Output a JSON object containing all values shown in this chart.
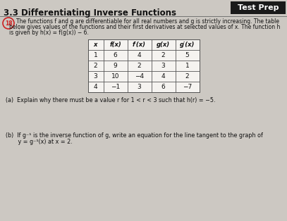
{
  "title": "3.3 Differentiating Inverse Functions",
  "badge": "Test Prep",
  "problem_number": "18",
  "intro_line1": "The functions f and g are differentiable for all real numbers and g is strictly increasing. The table",
  "intro_line2": "below gives values of the functions and their first derivatives at selected values of x. The function h",
  "intro_line3": "is given by h(x) = f(g(x)) − 6.",
  "table_headers": [
    "x",
    "f(x)",
    "f′(x)",
    "g(x)",
    "g′(x)"
  ],
  "table_data": [
    [
      "1",
      "6",
      "4",
      "2",
      "5"
    ],
    [
      "2",
      "9",
      "2",
      "3",
      "1"
    ],
    [
      "3",
      "10",
      "−4",
      "4",
      "2"
    ],
    [
      "4",
      "−1",
      "3",
      "6",
      "−7"
    ]
  ],
  "part_a": "(a)  Explain why there must be a value r for 1 < r < 3 such that h(r) = −5.",
  "part_b1": "(b)  If g⁻¹ is the inverse function of g, write an equation for the line tangent to the graph of",
  "part_b2": "       y = g⁻¹(x) at x = 2.",
  "bg_color": "#ccc8c2",
  "table_bg": "#f5f3f0",
  "badge_bg": "#1a1a1a",
  "badge_text": "#ffffff",
  "title_color": "#111111",
  "text_color": "#111111",
  "circle_color": "#cc2222",
  "line_color": "#666666"
}
